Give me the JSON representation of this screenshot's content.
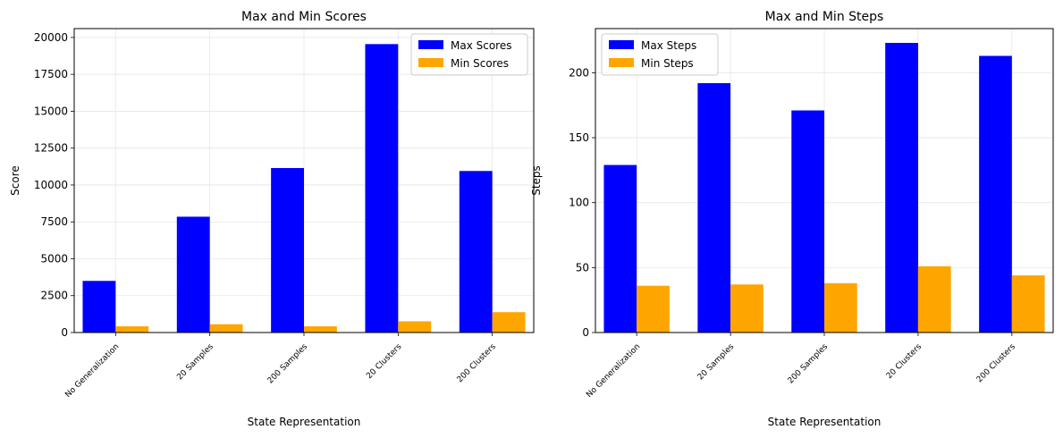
{
  "chart_data": [
    {
      "type": "bar",
      "title": "Max and Min Scores",
      "xlabel": "State Representation",
      "ylabel": "Score",
      "categories": [
        "No Generalization",
        "20 Samples",
        "200 Samples",
        "20 Clusters",
        "200 Clusters"
      ],
      "series": [
        {
          "name": "Max Scores",
          "color": "#0000ff",
          "values": [
            3500,
            7850,
            11150,
            19550,
            10950
          ]
        },
        {
          "name": "Min Scores",
          "color": "#ffa500",
          "values": [
            420,
            560,
            420,
            760,
            1380
          ]
        }
      ],
      "ylim": [
        0,
        20600
      ],
      "yticks": [
        0,
        2500,
        5000,
        7500,
        10000,
        12500,
        15000,
        17500,
        20000
      ],
      "ytick_labels": [
        "0",
        "2500",
        "5000",
        "7500",
        "10000",
        "12500",
        "15000",
        "17500",
        "20000"
      ],
      "grid": true,
      "legend_position": "upper right"
    },
    {
      "type": "bar",
      "title": "Max and Min Steps",
      "xlabel": "State Representation",
      "ylabel": "Steps",
      "categories": [
        "No Generalization",
        "20 Samples",
        "200 Samples",
        "20 Clusters",
        "200 Clusters"
      ],
      "series": [
        {
          "name": "Max Steps",
          "color": "#0000ff",
          "values": [
            129,
            192,
            171,
            223,
            213
          ]
        },
        {
          "name": "Min Steps",
          "color": "#ffa500",
          "values": [
            36,
            37,
            38,
            51,
            44
          ]
        }
      ],
      "ylim": [
        0,
        234
      ],
      "yticks": [
        0,
        50,
        100,
        150,
        200
      ],
      "ytick_labels": [
        "0",
        "50",
        "100",
        "150",
        "200"
      ],
      "grid": true,
      "legend_position": "upper left"
    }
  ]
}
